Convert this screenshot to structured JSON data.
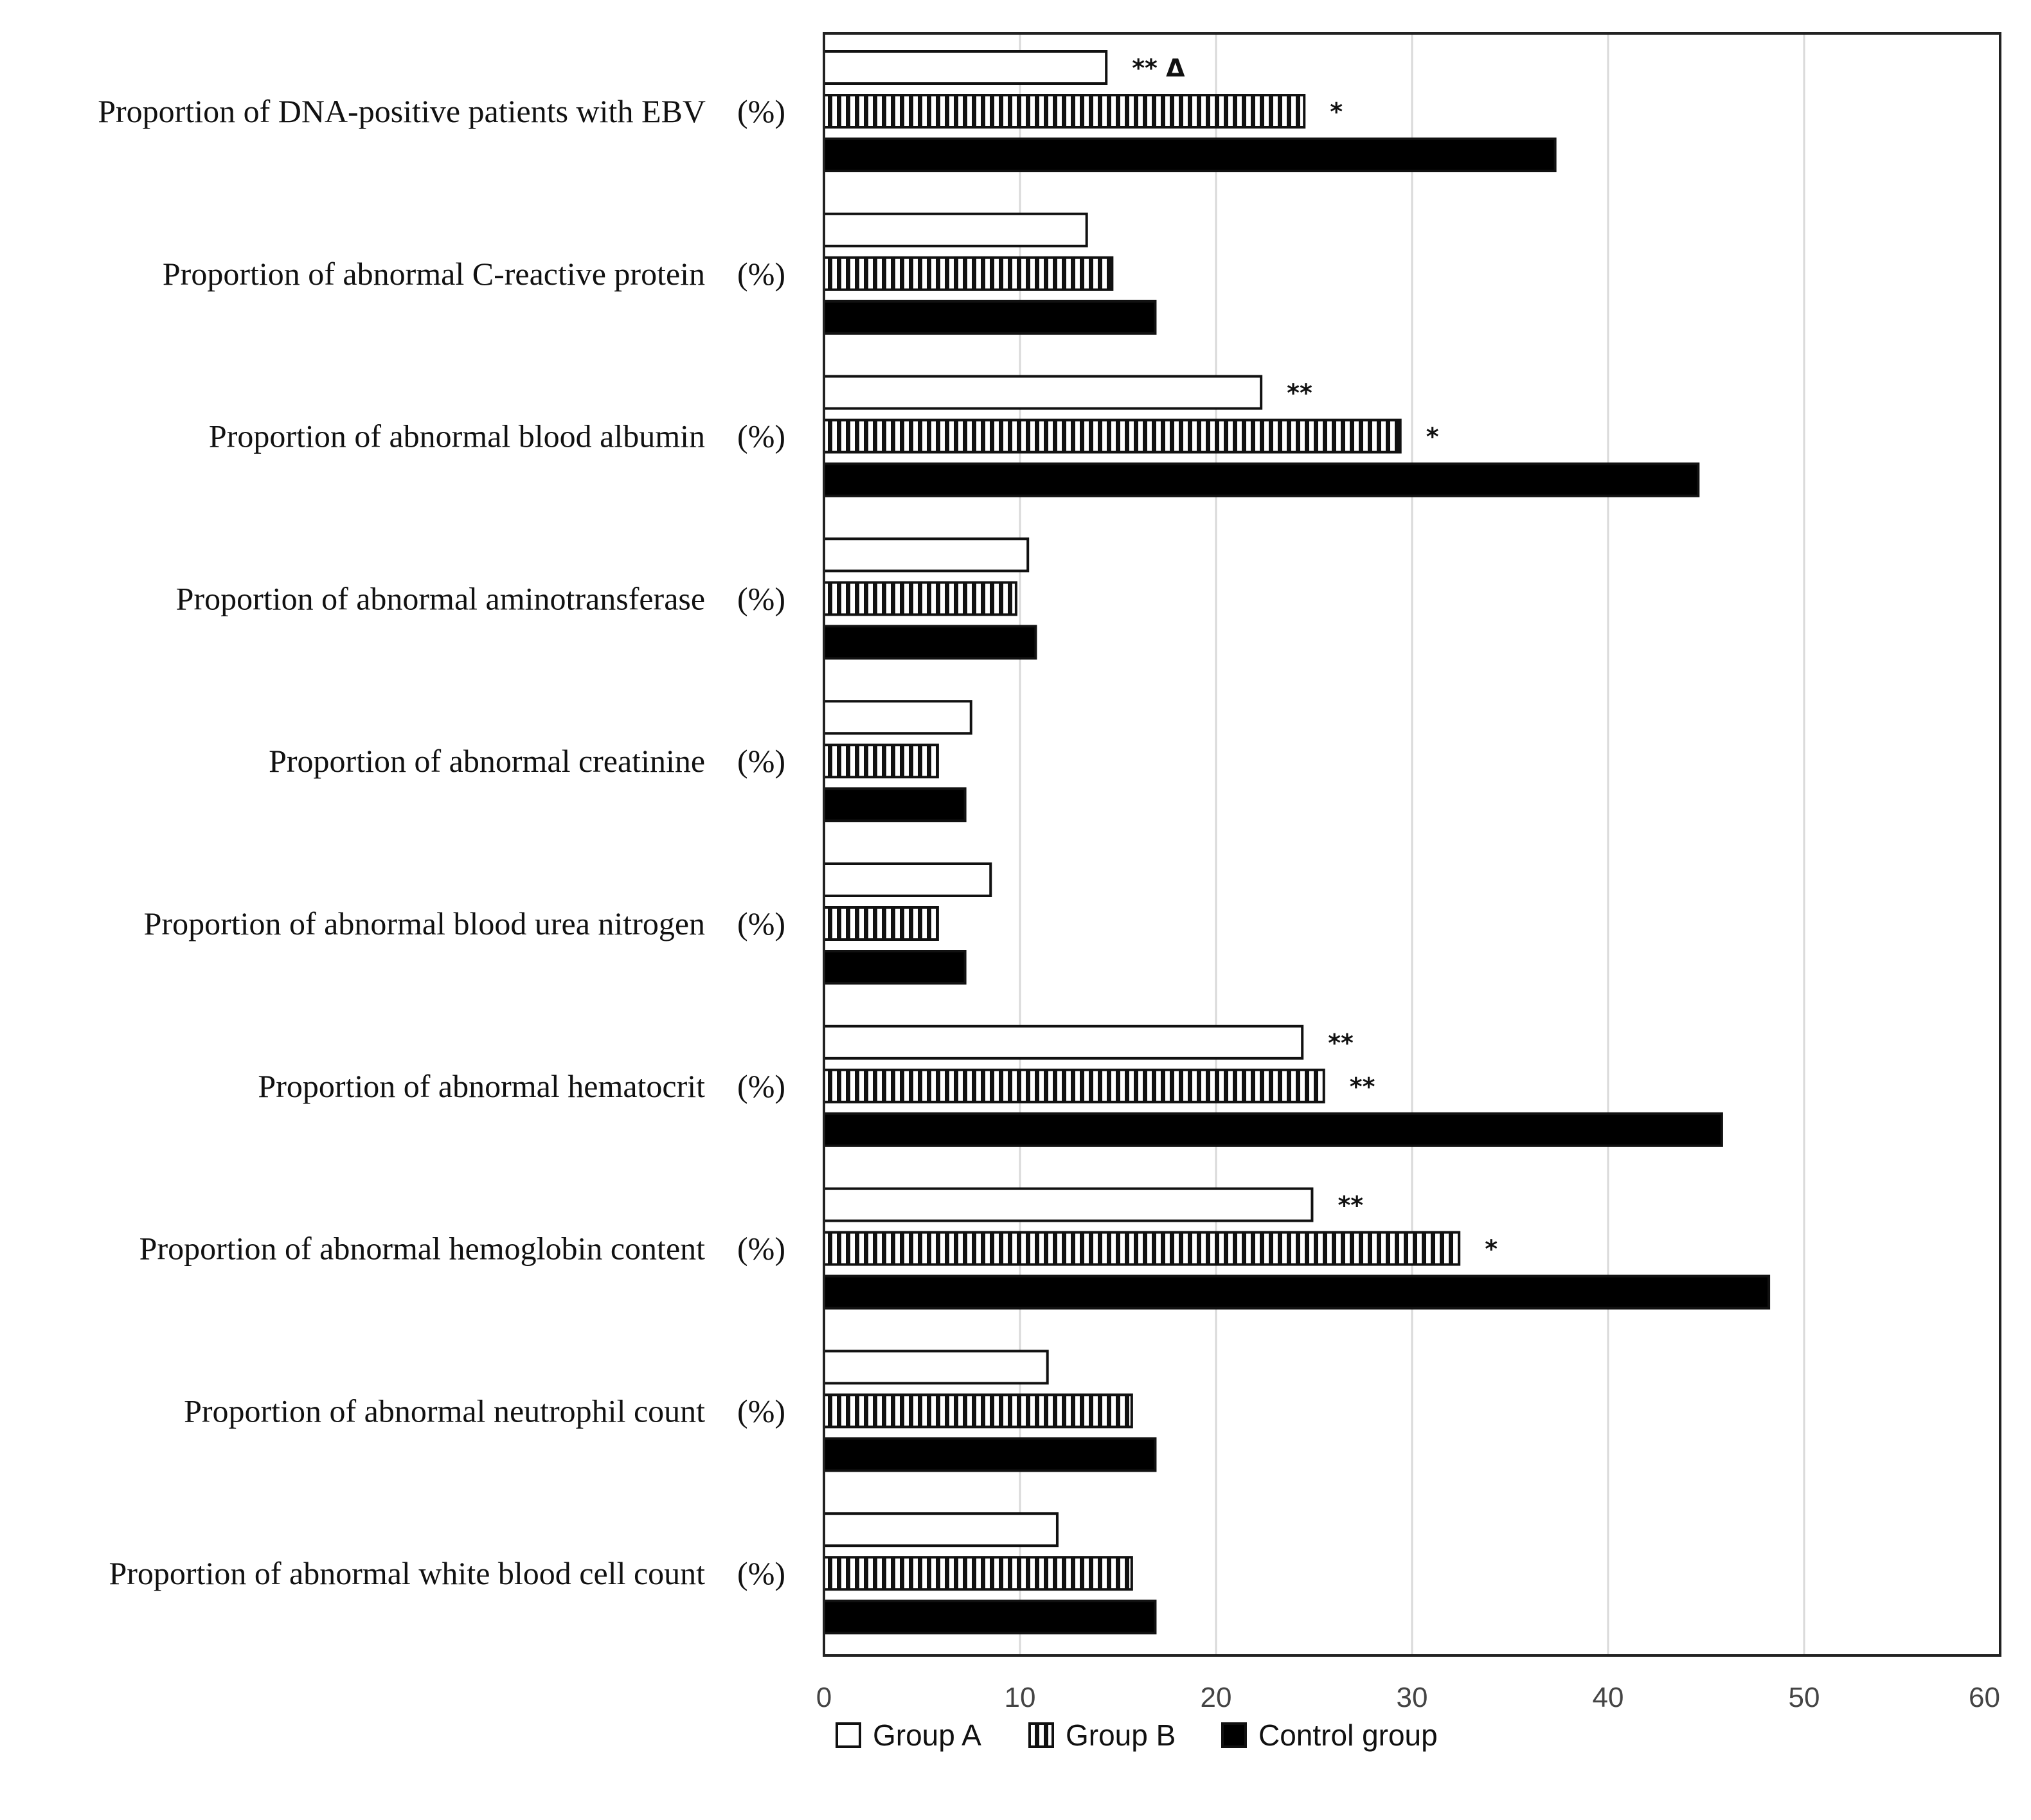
{
  "chart_data": {
    "type": "bar",
    "orientation": "horizontal",
    "title": "",
    "xlabel": "",
    "ylabel": "",
    "xlim": [
      0,
      60
    ],
    "x_ticks": [
      "0",
      "10",
      "20",
      "30",
      "40",
      "50",
      "60"
    ],
    "grid": true,
    "categories": [
      "Proportion of DNA-positive patients with EBV　(%)",
      "Proportion of abnormal  C-reactive protein　(%)",
      "Proportion of abnormal blood albumin　(%)",
      "Proportion of abnormal aminotransferase　(%)",
      "Proportion of abnormal creatinine　(%)",
      "Proportion of abnormal  blood urea nitrogen　(%)",
      "Proportion of abnormal hematocrit　(%)",
      "Proportion of abnormal hemoglobin content　(%)",
      "Proportion  of abnormal neutrophil count　(%)",
      "Proportion of abnormal white blood cell count　(%)"
    ],
    "series": [
      {
        "name": "Group A",
        "pattern": "hollow",
        "values": [
          14.4,
          13.4,
          22.3,
          10.4,
          7.5,
          8.5,
          24.4,
          24.9,
          11.4,
          11.9
        ],
        "annotations": [
          "** Δ",
          "",
          "**",
          "",
          "",
          "",
          "**",
          "**",
          "",
          ""
        ]
      },
      {
        "name": "Group B",
        "pattern": "vertical-stripes",
        "values": [
          24.5,
          14.7,
          29.4,
          9.8,
          5.8,
          5.8,
          25.5,
          32.4,
          15.7,
          15.7
        ],
        "annotations": [
          "*",
          "",
          "*",
          "",
          "",
          "",
          "**",
          "*",
          "",
          ""
        ]
      },
      {
        "name": "Control group",
        "pattern": "solid",
        "values": [
          37.3,
          16.9,
          44.6,
          10.8,
          7.2,
          7.2,
          45.8,
          48.2,
          16.9,
          16.9
        ],
        "annotations": [
          "",
          "",
          "",
          "",
          "",
          "",
          "",
          "",
          "",
          ""
        ]
      }
    ],
    "legend": {
      "position": "bottom",
      "entries": [
        "Group A",
        "Group B",
        "Control group"
      ]
    }
  }
}
